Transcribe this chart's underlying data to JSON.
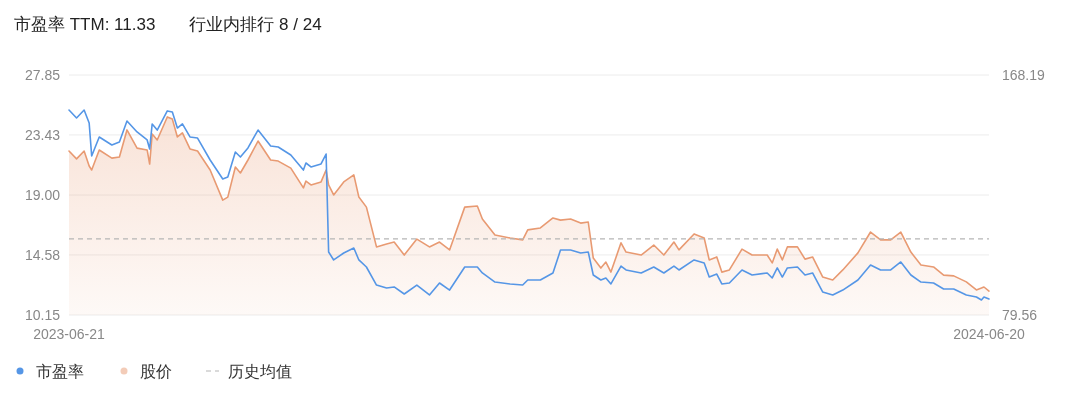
{
  "chart_data": {
    "type": "line",
    "title": "市盈率 TTM: 11.33",
    "subtitle": "行业内排行 8 / 24",
    "x": [
      "2023-06-21",
      "2023-06-24",
      "2023-06-27",
      "2023-06-29",
      "2023-06-30",
      "2023-07-03",
      "2023-07-08",
      "2023-07-11",
      "2023-07-14",
      "2023-07-18",
      "2023-07-22",
      "2023-07-23",
      "2023-07-24",
      "2023-07-26",
      "2023-07-30",
      "2023-08-01",
      "2023-08-03",
      "2023-08-05",
      "2023-08-08",
      "2023-08-11",
      "2023-08-16",
      "2023-08-21",
      "2023-08-23",
      "2023-08-26",
      "2023-08-28",
      "2023-08-31",
      "2023-09-04",
      "2023-09-09",
      "2023-09-12",
      "2023-09-17",
      "2023-09-22",
      "2023-09-23",
      "2023-09-25",
      "2023-09-29",
      "2023-10-01",
      "2023-10-02",
      "2023-10-04",
      "2023-10-08",
      "2023-10-12",
      "2023-10-14",
      "2023-10-17",
      "2023-10-21",
      "2023-10-25",
      "2023-10-28",
      "2023-11-01",
      "2023-11-06",
      "2023-11-11",
      "2023-11-15",
      "2023-11-19",
      "2023-11-25",
      "2023-11-30",
      "2023-12-02",
      "2023-12-07",
      "2023-12-13",
      "2023-12-18",
      "2023-12-20",
      "2023-12-25",
      "2023-12-30",
      "2024-01-02",
      "2024-01-06",
      "2024-01-10",
      "2024-01-13",
      "2024-01-15",
      "2024-01-18",
      "2024-01-20",
      "2024-01-22",
      "2024-01-26",
      "2024-01-28",
      "2024-02-03",
      "2024-02-08",
      "2024-02-12",
      "2024-02-16",
      "2024-02-18",
      "2024-02-24",
      "2024-02-28",
      "2024-03-01",
      "2024-03-04",
      "2024-03-06",
      "2024-03-09",
      "2024-03-14",
      "2024-03-18",
      "2024-03-24",
      "2024-03-26",
      "2024-03-28",
      "2024-03-30",
      "2024-04-01",
      "2024-04-05",
      "2024-04-08",
      "2024-04-11",
      "2024-04-15",
      "2024-04-19",
      "2024-04-23",
      "2024-04-29",
      "2024-05-04",
      "2024-05-08",
      "2024-05-12",
      "2024-05-16",
      "2024-05-20",
      "2024-05-24",
      "2024-05-29",
      "2024-06-02",
      "2024-06-06",
      "2024-06-11",
      "2024-06-15",
      "2024-06-17",
      "2024-06-18",
      "2024-06-20"
    ],
    "series": [
      {
        "name": "市盈率",
        "color": "#5596e6",
        "values": [
          25.27,
          24.68,
          25.27,
          24.31,
          21.88,
          23.28,
          22.69,
          22.91,
          24.46,
          23.65,
          23.06,
          22.39,
          24.24,
          23.79,
          25.2,
          25.12,
          23.94,
          24.24,
          23.28,
          23.2,
          21.58,
          20.18,
          20.33,
          22.17,
          21.8,
          22.47,
          23.79,
          22.61,
          22.54,
          21.95,
          20.84,
          21.36,
          21.07,
          21.29,
          22.02,
          14.8,
          14.21,
          14.72,
          15.09,
          14.21,
          13.69,
          12.36,
          12.14,
          12.22,
          11.7,
          12.36,
          11.63,
          12.51,
          11.99,
          13.69,
          13.69,
          13.25,
          12.58,
          12.44,
          12.36,
          12.73,
          12.73,
          13.25,
          14.94,
          14.94,
          14.72,
          14.8,
          13.1,
          12.73,
          12.88,
          12.44,
          13.76,
          13.47,
          13.25,
          13.69,
          13.25,
          13.76,
          13.47,
          14.21,
          13.99,
          12.95,
          13.17,
          12.44,
          12.51,
          13.47,
          13.1,
          13.25,
          12.88,
          13.62,
          12.95,
          13.62,
          13.69,
          13.1,
          13.25,
          11.85,
          11.63,
          11.99,
          12.73,
          13.84,
          13.47,
          13.47,
          14.06,
          13.1,
          12.58,
          12.51,
          12.07,
          12.07,
          11.63,
          11.48,
          11.26,
          11.48,
          11.33
        ]
      },
      {
        "name": "股价",
        "type": "area",
        "axis": "y2",
        "color": "#e89a72",
        "values": [
          140.1,
          137.2,
          140.1,
          134.6,
          133.1,
          140.5,
          137.5,
          137.9,
          147.9,
          141.2,
          140.5,
          135.3,
          146.4,
          144.2,
          152.7,
          151.9,
          145.3,
          146.8,
          140.9,
          140.1,
          133.1,
          122.0,
          123.1,
          134.2,
          132.0,
          136.8,
          143.8,
          136.8,
          136.4,
          133.8,
          126.5,
          129.0,
          127.6,
          128.7,
          133.1,
          127.6,
          123.9,
          128.7,
          131.3,
          123.1,
          119.4,
          104.7,
          105.8,
          106.5,
          101.7,
          107.6,
          104.7,
          106.5,
          103.6,
          119.4,
          119.8,
          115.0,
          109.1,
          108.0,
          107.3,
          111.0,
          111.7,
          115.4,
          114.6,
          115.0,
          113.5,
          113.9,
          100.6,
          96.9,
          99.1,
          95.4,
          106.2,
          102.8,
          101.7,
          105.4,
          101.7,
          106.5,
          103.6,
          109.5,
          108.0,
          99.9,
          101.0,
          95.4,
          96.2,
          103.9,
          101.7,
          101.7,
          98.8,
          103.9,
          99.9,
          104.7,
          104.7,
          100.2,
          101.0,
          93.6,
          92.5,
          96.2,
          102.5,
          110.2,
          107.3,
          107.3,
          110.2,
          102.8,
          98.0,
          97.3,
          94.3,
          94.0,
          91.8,
          88.8,
          89.5,
          89.9,
          88.4
        ]
      }
    ],
    "xlim": [
      "2023-06-21",
      "2024-06-20"
    ],
    "xticks": [
      "2023-06-21",
      "2024-06-20"
    ],
    "ylim": [
      10.15,
      27.85
    ],
    "yticks": [
      10.15,
      14.58,
      {
        "value": 19,
        "label": "19.00"
      },
      23.43,
      27.85
    ],
    "y2lim": [
      79.56,
      168.19
    ],
    "y2ticks": [
      79.56,
      168.19
    ],
    "ref_lines": [
      {
        "axis": "y",
        "value": 15.76,
        "label": "历史均值",
        "color": "#b5b5b5",
        "line_style": "dashed"
      }
    ],
    "grid": "y",
    "legend": "bottom left"
  }
}
